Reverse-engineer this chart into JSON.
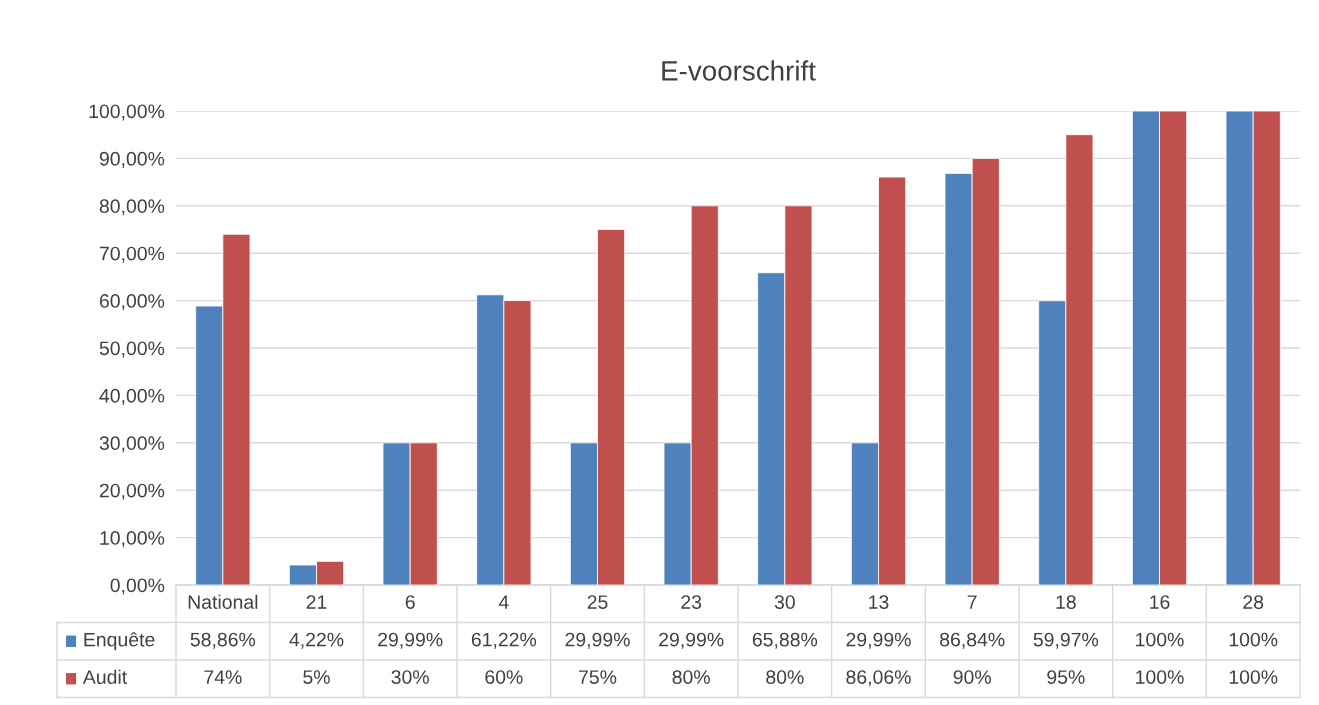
{
  "chart_data": {
    "type": "bar",
    "title": "E-voorschrift",
    "categories": [
      "National",
      "21",
      "6",
      "4",
      "25",
      "23",
      "30",
      "13",
      "7",
      "18",
      "16",
      "28"
    ],
    "series": [
      {
        "name": "Enquête",
        "color": "#4f81bd",
        "values": [
          58.86,
          4.22,
          29.99,
          61.22,
          29.99,
          29.99,
          65.88,
          29.99,
          86.84,
          59.97,
          100,
          100
        ],
        "value_labels": [
          "58,86%",
          "4,22%",
          "29,99%",
          "61,22%",
          "29,99%",
          "29,99%",
          "65,88%",
          "29,99%",
          "86,84%",
          "59,97%",
          "100%",
          "100%"
        ]
      },
      {
        "name": "Audit",
        "color": "#c0504d",
        "values": [
          74,
          5,
          30,
          60,
          75,
          80,
          80,
          86.06,
          90,
          95,
          100,
          100
        ],
        "value_labels": [
          "74%",
          "5%",
          "30%",
          "60%",
          "75%",
          "80%",
          "80%",
          "86,06%",
          "90%",
          "95%",
          "100%",
          "100%"
        ]
      }
    ],
    "ylim": [
      0,
      100
    ],
    "yticks": [
      {
        "value": 0,
        "label": "0,00%"
      },
      {
        "value": 10,
        "label": "10,00%"
      },
      {
        "value": 20,
        "label": "20,00%"
      },
      {
        "value": 30,
        "label": "30,00%"
      },
      {
        "value": 40,
        "label": "40,00%"
      },
      {
        "value": 50,
        "label": "50,00%"
      },
      {
        "value": 60,
        "label": "60,00%"
      },
      {
        "value": 70,
        "label": "70,00%"
      },
      {
        "value": 80,
        "label": "80,00%"
      },
      {
        "value": 90,
        "label": "90,00%"
      },
      {
        "value": 100,
        "label": "100,00%"
      }
    ],
    "grid": "y",
    "legend": "bottom"
  }
}
